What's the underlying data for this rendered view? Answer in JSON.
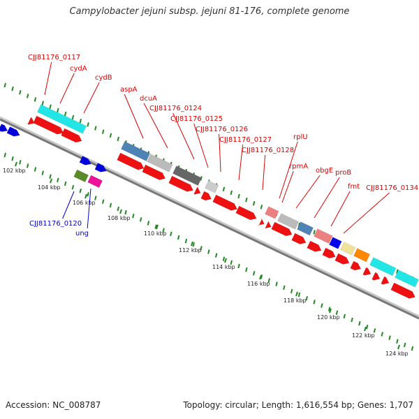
{
  "title": "Campylobacter jejuni subsp. jejuni 81-176, complete genome",
  "footer": {
    "accession": "Accession: NC_008787",
    "summary": "Topology: circular; Length: 1,616,554 bp; Genes: 1,707"
  },
  "colors": {
    "forward_label": "#dd0000",
    "reverse_label": "#0000cc",
    "backbone": "#888888",
    "gc_dots": "#228822"
  },
  "ticks": [
    "102 kbp",
    "104 kbp",
    "106 kbp",
    "108 kbp",
    "110 kbp",
    "112 kbp",
    "114 kbp",
    "116 kbp",
    "118 kbp",
    "120 kbp",
    "122 kbp",
    "124 kbp"
  ],
  "forward_labels": [
    "CJJ81176_0117",
    "cydA",
    "cydB",
    "aspA",
    "dcuA",
    "CJJ81176_0124",
    "CJJ81176_0125",
    "CJJ81176_0126",
    "CJJ81176_0127",
    "CJJ81176_0128",
    "rplU",
    "rpmA",
    "obgE",
    "proB",
    "fmt",
    "CJJ81176_0134"
  ],
  "reverse_labels": [
    "CJJ81176_0120",
    "ung"
  ]
}
